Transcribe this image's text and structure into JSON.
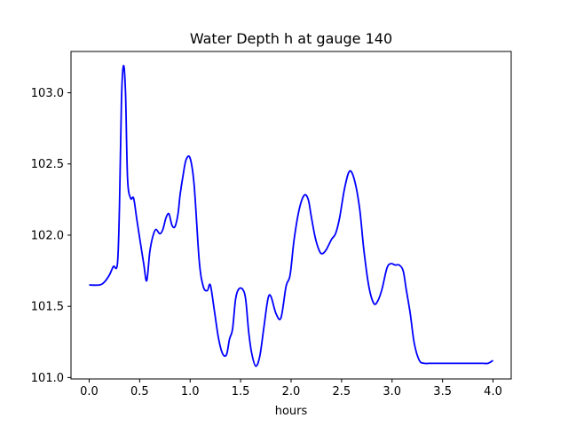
{
  "chart_data": {
    "type": "line",
    "title": "Water Depth h at gauge 140",
    "xlabel": "hours",
    "ylabel": "",
    "xlim": [
      -0.18,
      4.18
    ],
    "ylim": [
      100.99,
      103.29
    ],
    "xticks": [
      0.0,
      0.5,
      1.0,
      1.5,
      2.0,
      2.5,
      3.0,
      3.5,
      4.0
    ],
    "xtick_labels": [
      "0.0",
      "0.5",
      "1.0",
      "1.5",
      "2.0",
      "2.5",
      "3.0",
      "3.5",
      "4.0"
    ],
    "yticks": [
      101.0,
      101.5,
      102.0,
      102.5,
      103.0
    ],
    "ytick_labels": [
      "101.0",
      "101.5",
      "102.0",
      "102.5",
      "103.0"
    ],
    "grid": false,
    "series": [
      {
        "color": "#0000ff",
        "x": [
          0.0,
          0.1,
          0.15,
          0.2,
          0.24,
          0.28,
          0.3,
          0.32,
          0.34,
          0.36,
          0.38,
          0.41,
          0.44,
          0.47,
          0.5,
          0.54,
          0.57,
          0.6,
          0.63,
          0.66,
          0.7,
          0.73,
          0.76,
          0.79,
          0.82,
          0.85,
          0.88,
          0.9,
          0.93,
          0.96,
          1.0,
          1.04,
          1.09,
          1.13,
          1.17,
          1.2,
          1.24,
          1.28,
          1.32,
          1.36,
          1.39,
          1.42,
          1.45,
          1.48,
          1.52,
          1.55,
          1.58,
          1.61,
          1.65,
          1.69,
          1.73,
          1.77,
          1.8,
          1.85,
          1.9,
          1.95,
          1.99,
          2.03,
          2.08,
          2.13,
          2.17,
          2.2,
          2.24,
          2.28,
          2.31,
          2.35,
          2.4,
          2.44,
          2.48,
          2.53,
          2.58,
          2.63,
          2.68,
          2.72,
          2.77,
          2.82,
          2.86,
          2.9,
          2.95,
          2.99,
          3.03,
          3.07,
          3.11,
          3.14,
          3.18,
          3.22,
          3.27,
          3.32,
          3.37,
          3.42,
          3.47,
          3.53,
          3.58,
          3.62,
          3.66,
          3.7,
          3.75,
          3.8,
          3.85,
          3.9,
          3.95,
          4.0
        ],
        "y": [
          101.65,
          101.65,
          101.67,
          101.72,
          101.78,
          101.8,
          102.2,
          102.95,
          103.19,
          103.0,
          102.4,
          102.26,
          102.26,
          102.12,
          101.98,
          101.8,
          101.68,
          101.88,
          101.99,
          102.04,
          102.01,
          102.04,
          102.12,
          102.15,
          102.07,
          102.06,
          102.15,
          102.28,
          102.42,
          102.53,
          102.54,
          102.35,
          101.82,
          101.64,
          101.61,
          101.65,
          101.47,
          101.28,
          101.17,
          101.16,
          101.27,
          101.34,
          101.55,
          101.62,
          101.62,
          101.55,
          101.32,
          101.17,
          101.08,
          101.15,
          101.35,
          101.55,
          101.57,
          101.45,
          101.42,
          101.64,
          101.72,
          101.97,
          102.18,
          102.28,
          102.25,
          102.13,
          101.98,
          101.89,
          101.87,
          101.9,
          101.97,
          102.01,
          102.12,
          102.33,
          102.45,
          102.38,
          102.18,
          101.9,
          101.64,
          101.52,
          101.54,
          101.62,
          101.77,
          101.8,
          101.79,
          101.79,
          101.75,
          101.62,
          101.45,
          101.24,
          101.12,
          101.1,
          101.1,
          101.1,
          101.1,
          101.1,
          101.1,
          101.1,
          101.1,
          101.1,
          101.1,
          101.1,
          101.1,
          101.1,
          101.1,
          101.12
        ]
      }
    ]
  }
}
